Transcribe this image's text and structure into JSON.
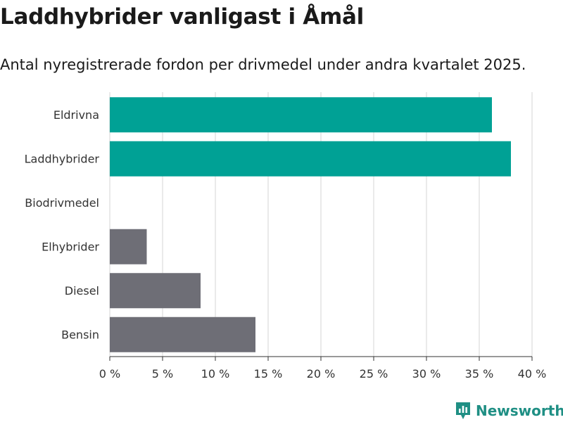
{
  "header": {
    "title": "Laddhybrider vanligast i Åmål",
    "subtitle": "Antal nyregistrerade fordon per drivmedel under andra kvartalet 2025."
  },
  "brand": {
    "name": "Newsworthy",
    "color": "#1f8f84"
  },
  "chart_data": {
    "type": "bar",
    "orientation": "horizontal",
    "categories": [
      "Eldrivna",
      "Laddhybrider",
      "Biodrivmedel",
      "Elhybrider",
      "Diesel",
      "Bensin"
    ],
    "values": [
      36.2,
      38.0,
      0,
      3.5,
      8.6,
      13.8
    ],
    "colors": [
      "#00a195",
      "#00a195",
      "#6e6e76",
      "#6e6e76",
      "#6e6e76",
      "#6e6e76"
    ],
    "xlim": [
      0,
      40
    ],
    "xticks": [
      0,
      5,
      10,
      15,
      20,
      25,
      30,
      35,
      40
    ],
    "tick_labels": [
      "0 %",
      "5 %",
      "10 %",
      "15 %",
      "20 %",
      "25 %",
      "30 %",
      "35 %",
      "40 %"
    ],
    "grid": true,
    "title": "Laddhybrider vanligast i Åmål",
    "xlabel": "",
    "ylabel": ""
  }
}
